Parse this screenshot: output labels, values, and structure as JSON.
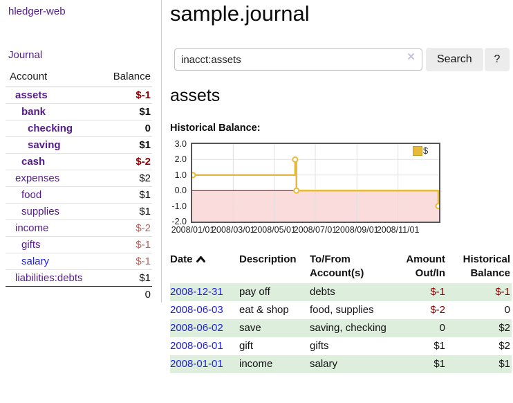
{
  "app": {
    "brand": "hledger-web",
    "nav": {
      "journal": "Journal"
    }
  },
  "colors": {
    "accent_purple": "#551a8b",
    "link_blue": "#2222dd",
    "negative_strong": "#8b0000",
    "negative_soft": "#b7625f",
    "row_stripe_green": "#ddeedd",
    "chart_line_gold": "#e8ba3a",
    "chart_negative_fill": "#fbdcdc",
    "chart_zero_line": "#8b0000"
  },
  "sidebar": {
    "headers": {
      "account": "Account",
      "balance": "Balance"
    },
    "accounts": [
      {
        "name": "assets",
        "balance": "$-1",
        "depth": 1,
        "emphasis": true,
        "balance_style": "neg-strong"
      },
      {
        "name": "bank",
        "balance": "$1",
        "depth": 2,
        "emphasis": true,
        "balance_style": "pos"
      },
      {
        "name": "checking",
        "balance": "0",
        "depth": 3,
        "emphasis": true,
        "balance_style": "pos"
      },
      {
        "name": "saving",
        "balance": "$1",
        "depth": 3,
        "emphasis": true,
        "balance_style": "pos"
      },
      {
        "name": "cash",
        "balance": "$-2",
        "depth": 2,
        "emphasis": true,
        "balance_style": "neg-strong"
      },
      {
        "name": "expenses",
        "balance": "$2",
        "depth": 1,
        "emphasis": false,
        "balance_style": "pos"
      },
      {
        "name": "food",
        "balance": "$1",
        "depth": 2,
        "emphasis": false,
        "balance_style": "pos"
      },
      {
        "name": "supplies",
        "balance": "$1",
        "depth": 2,
        "emphasis": false,
        "balance_style": "pos"
      },
      {
        "name": "income",
        "balance": "$-2",
        "depth": 1,
        "emphasis": false,
        "balance_style": "neg-soft"
      },
      {
        "name": "gifts",
        "balance": "$-1",
        "depth": 2,
        "emphasis": false,
        "balance_style": "neg-soft"
      },
      {
        "name": "salary",
        "balance": "$-1",
        "depth": 2,
        "emphasis": false,
        "balance_style": "neg-soft",
        "link_style": "unvisited"
      },
      {
        "name": "liabilities:debts",
        "balance": "$1",
        "depth": 1,
        "emphasis": false,
        "balance_style": "pos"
      }
    ],
    "total": "0"
  },
  "main": {
    "title": "sample.journal",
    "search": {
      "value": "inacct:assets",
      "clear_icon": "×",
      "search_button": "Search",
      "help_button": "?"
    },
    "account_heading": "assets"
  },
  "chart_data": {
    "type": "line",
    "step": true,
    "title": "Historical Balance:",
    "ylim": [
      -2,
      3
    ],
    "yticks": [
      "3.0",
      "2.0",
      "1.0",
      "0.0",
      "-1.0",
      "-2.0"
    ],
    "xticks": [
      "2008/01/01",
      "2008/03/01",
      "2008/05/01",
      "2008/07/01",
      "2008/09/01",
      "2008/11/01"
    ],
    "x_range": [
      "2008-01-01",
      "2008-12-31"
    ],
    "grid": true,
    "legend_position": "top-right",
    "series": [
      {
        "name": "$",
        "color": "#e8ba3a",
        "points": [
          {
            "date": "2008-01-01",
            "value": 1
          },
          {
            "date": "2008-06-01",
            "value": 2
          },
          {
            "date": "2008-06-03",
            "value": 0
          },
          {
            "date": "2008-12-31",
            "value": -1
          }
        ]
      }
    ]
  },
  "register": {
    "headers": {
      "date": "Date",
      "description": "Description",
      "account": "To/From Account(s)",
      "amount": "Amount Out/In",
      "balance": "Historical Balance"
    },
    "rows": [
      {
        "date": "2008-12-31",
        "description": "pay off",
        "accounts": "debts",
        "amount": "$-1",
        "balance": "$-1",
        "amount_negative": true,
        "balance_negative": true
      },
      {
        "date": "2008-06-03",
        "description": "eat & shop",
        "accounts": "food, supplies",
        "amount": "$-2",
        "balance": "0",
        "amount_negative": true,
        "balance_negative": false
      },
      {
        "date": "2008-06-02",
        "description": "save",
        "accounts": "saving, checking",
        "amount": "0",
        "balance": "$2",
        "amount_negative": false,
        "balance_negative": false
      },
      {
        "date": "2008-06-01",
        "description": "gift",
        "accounts": "gifts",
        "amount": "$1",
        "balance": "$2",
        "amount_negative": false,
        "balance_negative": false
      },
      {
        "date": "2008-01-01",
        "description": "income",
        "accounts": "salary",
        "amount": "$1",
        "balance": "$1",
        "amount_negative": false,
        "balance_negative": false
      }
    ]
  }
}
